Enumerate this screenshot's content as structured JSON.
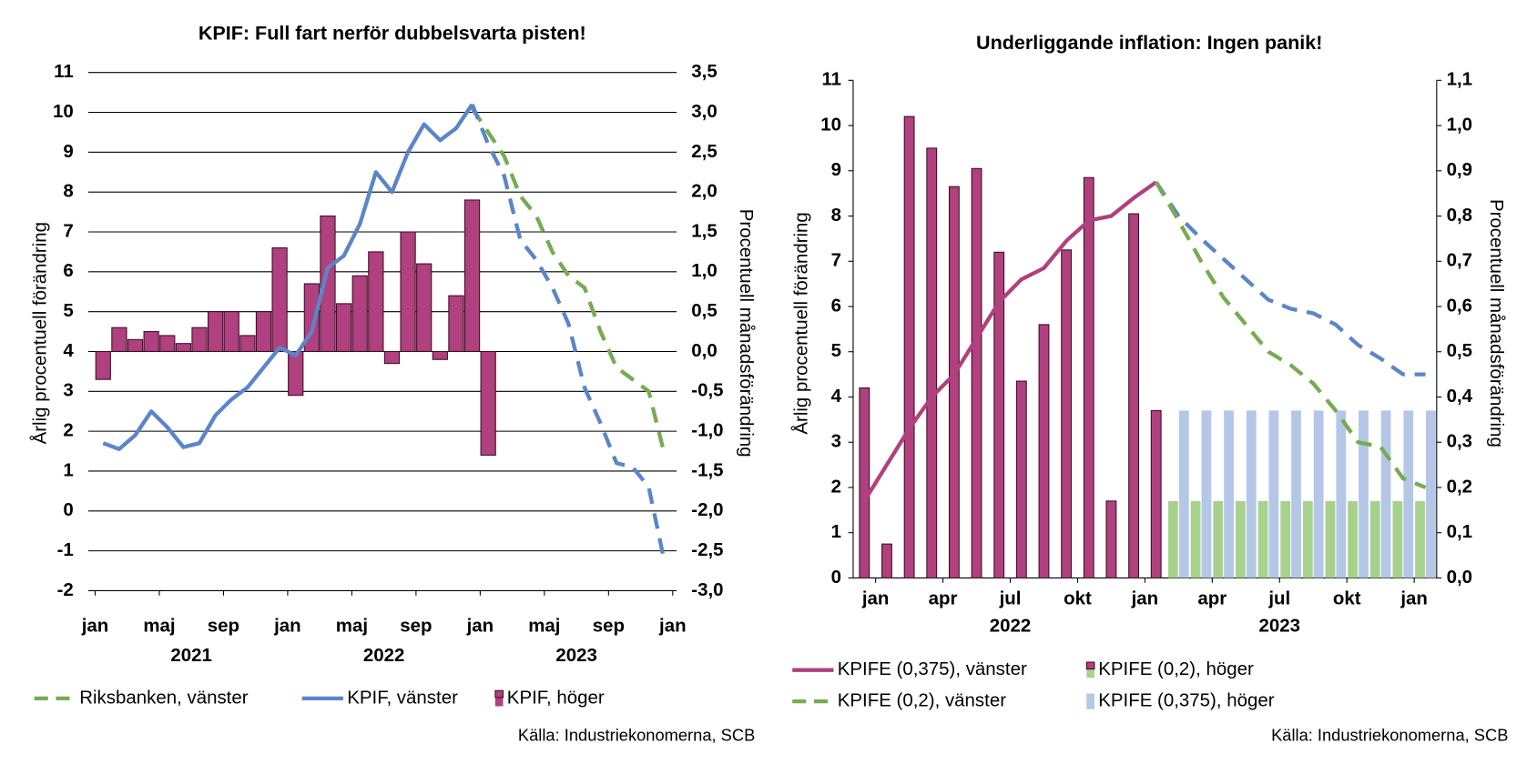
{
  "chart_data": [
    {
      "type": "bar-line",
      "title": "KPIF: Full fart nerför dubbelsvarta pisten!",
      "y_label": "Årlig procentuell förändring",
      "y2_label": "Procentuell månadsförändring",
      "source": "Källa: Industriekonomerna, SCB",
      "xlim": [
        0,
        36
      ],
      "xticks": [
        {
          "value": 0,
          "label": "jan"
        },
        {
          "value": 4,
          "label": "maj"
        },
        {
          "value": 8,
          "label": "sep"
        },
        {
          "value": 12,
          "label": "jan"
        },
        {
          "value": 16,
          "label": "maj"
        },
        {
          "value": 20,
          "label": "sep"
        },
        {
          "value": 24,
          "label": "jan"
        },
        {
          "value": 28,
          "label": "maj"
        },
        {
          "value": 32,
          "label": "sep"
        },
        {
          "value": 36,
          "label": "jan"
        }
      ],
      "year_labels": [
        {
          "value": 6,
          "label": "2021"
        },
        {
          "value": 18,
          "label": "2022"
        },
        {
          "value": 30,
          "label": "2023"
        }
      ],
      "x": [
        0.5,
        1.5,
        2.5,
        3.5,
        4.5,
        5.5,
        6.5,
        7.5,
        8.5,
        9.5,
        10.5,
        11.5,
        12.5,
        13.5,
        14.5,
        15.5,
        16.5,
        17.5,
        18.5,
        19.5,
        20.5,
        21.5,
        22.5,
        23.5,
        24.5,
        25.5,
        26.5,
        27.5,
        28.5,
        29.5,
        30.5,
        31.5,
        32.5,
        33.5,
        34.5,
        35.5
      ],
      "ylim": [
        -2,
        11
      ],
      "yticks": [
        -2,
        -1,
        0,
        1,
        2,
        3,
        4,
        5,
        6,
        7,
        8,
        9,
        10,
        11
      ],
      "y2lim": [
        -3,
        3.5
      ],
      "y2ticks": [
        {
          "value": -3,
          "label": "-3,0"
        },
        {
          "value": -2.5,
          "label": "-2,5"
        },
        {
          "value": -2,
          "label": "-2,0"
        },
        {
          "value": -1.5,
          "label": "-1,5"
        },
        {
          "value": -1,
          "label": "-1,0"
        },
        {
          "value": -0.5,
          "label": "-0,5"
        },
        {
          "value": 0,
          "label": "0,0"
        },
        {
          "value": 0.5,
          "label": "0,5"
        },
        {
          "value": 1,
          "label": "1,0"
        },
        {
          "value": 1.5,
          "label": "1,5"
        },
        {
          "value": 2,
          "label": "2,0"
        },
        {
          "value": 2.5,
          "label": "2,5"
        },
        {
          "value": 3,
          "label": "3,0"
        },
        {
          "value": 3.5,
          "label": "3,5"
        }
      ],
      "grid": true,
      "series": [
        {
          "name": "Riksbanken, vänster",
          "kind": "line",
          "dash": true,
          "color": "#77ab53",
          "values": [
            null,
            null,
            null,
            null,
            null,
            null,
            null,
            null,
            null,
            null,
            null,
            null,
            null,
            null,
            null,
            null,
            null,
            null,
            null,
            null,
            null,
            null,
            null,
            10.1,
            9.5,
            8.9,
            7.9,
            7.4,
            6.5,
            5.9,
            5.6,
            4.5,
            3.6,
            3.3,
            3.0,
            1.4
          ]
        },
        {
          "name": "KPIF, vänster",
          "kind": "line",
          "color": "#5b85c8",
          "forecast_color": "#5b85c8",
          "forecast_from": 23,
          "values": [
            1.7,
            1.55,
            1.9,
            2.5,
            2.1,
            1.6,
            1.7,
            2.4,
            2.8,
            3.1,
            3.6,
            4.1,
            3.9,
            4.5,
            6.1,
            6.4,
            7.2,
            8.5,
            8.0,
            9.0,
            9.7,
            9.3,
            9.6,
            10.2,
            9.2,
            8.4,
            6.8,
            6.3,
            5.6,
            4.7,
            3.1,
            2.2,
            1.2,
            1.1,
            0.6,
            -1.3
          ]
        },
        {
          "name": "KPIF, höger",
          "kind": "bar",
          "axis": "y2",
          "color": "#b0407e",
          "values": [
            -0.35,
            0.3,
            0.15,
            0.25,
            0.2,
            0.1,
            0.3,
            0.5,
            0.5,
            0.2,
            0.5,
            1.3,
            -0.55,
            0.85,
            1.7,
            0.6,
            0.95,
            1.25,
            -0.15,
            1.5,
            1.1,
            -0.1,
            0.7,
            1.9,
            -1.3,
            null,
            null,
            null,
            null,
            null,
            null,
            null,
            null,
            null,
            null,
            null
          ]
        }
      ]
    },
    {
      "type": "bar-line",
      "title": "Underliggande inflation: Ingen panik!",
      "y_label": "Årlig procentuell förändring",
      "y2_label": "Procentuell månadsförändring",
      "source": "Källa: Industriekonomerna, SCB",
      "xlim": [
        -0.5,
        25.5
      ],
      "xticks": [
        {
          "value": 0.5,
          "label": "jan"
        },
        {
          "value": 3.5,
          "label": "apr"
        },
        {
          "value": 6.5,
          "label": "jul"
        },
        {
          "value": 9.5,
          "label": "okt"
        },
        {
          "value": 12.5,
          "label": "jan"
        },
        {
          "value": 15.5,
          "label": "apr"
        },
        {
          "value": 18.5,
          "label": "jul"
        },
        {
          "value": 21.5,
          "label": "okt"
        },
        {
          "value": 24.5,
          "label": "jan"
        }
      ],
      "year_labels": [
        {
          "value": 6.5,
          "label": "2022"
        },
        {
          "value": 18.5,
          "label": "2023"
        }
      ],
      "x": [
        0,
        1,
        2,
        3,
        4,
        5,
        6,
        7,
        8,
        9,
        10,
        11,
        12,
        13,
        14,
        15,
        16,
        17,
        18,
        19,
        20,
        21,
        22,
        23,
        24,
        25
      ],
      "ylim": [
        0,
        11
      ],
      "yticks": [
        0,
        1,
        2,
        3,
        4,
        5,
        6,
        7,
        8,
        9,
        10,
        11
      ],
      "y2lim": [
        0,
        1.1
      ],
      "y2ticks": [
        {
          "value": 0,
          "label": "0,0"
        },
        {
          "value": 0.1,
          "label": "0,1"
        },
        {
          "value": 0.2,
          "label": "0,2"
        },
        {
          "value": 0.3,
          "label": "0,3"
        },
        {
          "value": 0.4,
          "label": "0,4"
        },
        {
          "value": 0.5,
          "label": "0,5"
        },
        {
          "value": 0.6,
          "label": "0,6"
        },
        {
          "value": 0.7,
          "label": "0,7"
        },
        {
          "value": 0.8,
          "label": "0,8"
        },
        {
          "value": 0.9,
          "label": "0,9"
        },
        {
          "value": 1.0,
          "label": "1,0"
        },
        {
          "value": 1.1,
          "label": "1,1"
        }
      ],
      "grid": false,
      "series": [
        {
          "name": "KPIFE (0,375), vänster",
          "kind": "line",
          "color": "#b0407e",
          "forecast_color": "#5b85c8",
          "forecast_from": 13,
          "values": [
            1.7,
            2.5,
            3.3,
            4.0,
            4.5,
            5.3,
            6.1,
            6.6,
            6.85,
            7.45,
            7.9,
            8.0,
            8.4,
            8.75,
            8.0,
            7.5,
            7.05,
            6.6,
            6.15,
            5.95,
            5.85,
            5.6,
            5.15,
            4.85,
            4.5,
            4.5
          ]
        },
        {
          "name": "KPIFE (0,2), höger",
          "kind": "bar",
          "axis": "y2",
          "color": "#b0407e",
          "forecast_color": "#a9d18e",
          "forecast_from": 14,
          "values": [
            0.42,
            0.075,
            1.02,
            0.95,
            0.865,
            0.905,
            0.72,
            0.435,
            0.56,
            0.725,
            0.885,
            0.17,
            0.805,
            0.37,
            0.17,
            0.17,
            0.17,
            0.17,
            0.17,
            0.17,
            0.17,
            0.17,
            0.17,
            0.17,
            0.17,
            0.17
          ]
        },
        {
          "name": "KPIFE (0,2), vänster",
          "kind": "line",
          "dash": true,
          "color": "#77ab53",
          "values": [
            null,
            null,
            null,
            null,
            null,
            null,
            null,
            null,
            null,
            null,
            null,
            null,
            null,
            8.75,
            7.9,
            7.0,
            6.2,
            5.6,
            5.0,
            4.7,
            4.3,
            3.7,
            3.0,
            2.9,
            2.2,
            2.0
          ]
        },
        {
          "name": "KPIFE (0,375), höger",
          "kind": "bar",
          "axis": "y2",
          "color": "#b4c7e7",
          "values": [
            null,
            null,
            null,
            null,
            null,
            null,
            null,
            null,
            null,
            null,
            null,
            null,
            null,
            null,
            0.37,
            0.37,
            0.37,
            0.37,
            0.37,
            0.37,
            0.37,
            0.37,
            0.37,
            0.37,
            0.37,
            0.37
          ]
        }
      ]
    }
  ]
}
